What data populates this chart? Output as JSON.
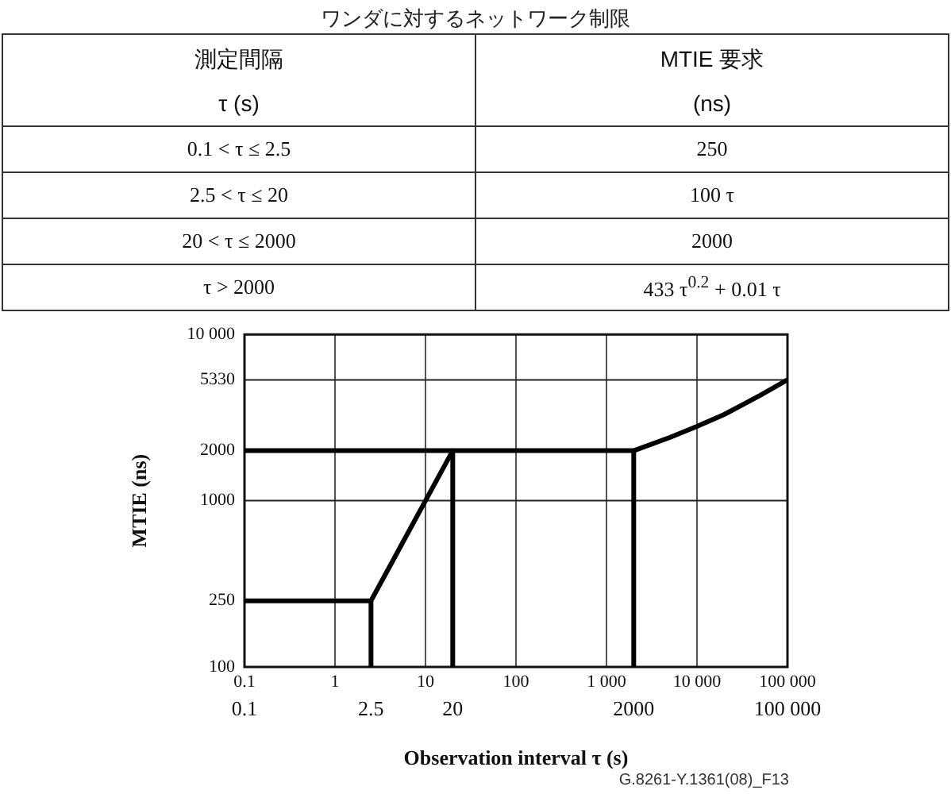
{
  "chart_data": {
    "type": "line",
    "title": "ワンダに対するネットワーク制限",
    "xlabel": "Observation interval τ (s)",
    "ylabel": "MTIE (ns)",
    "annotations": [
      "測定間隔",
      "τ (s)",
      "MTIE 要求",
      "(ns)",
      "0.1 < τ ≤ 2.5",
      "250",
      "2.5 < τ ≤ 20",
      "100 τ",
      "20 < τ ≤ 2000",
      "2000",
      "τ > 2000",
      "433 τ$^{0.2}$ + 0.01 τ",
      "0.1",
      {
        "text": "2.5",
        "x": 2.5,
        "y": 100
      },
      {
        "text": "20",
        "x": 20,
        "y": 100
      },
      {
        "text": "2000",
        "x": 2000,
        "y": 100
      },
      "100 000",
      "G.8261-Y.1361(08)_F13"
    ],
    "log": "xy",
    "xlim": [
      0.1,
      100000
    ],
    "xticks": [
      0.1,
      1,
      10,
      100,
      {
        "value": 1000,
        "label": "1 000"
      },
      {
        "value": 10000,
        "label": "10 000"
      },
      {
        "value": 100000,
        "label": "100 000"
      }
    ],
    "ylim": [
      100,
      10000
    ],
    "yticks": [
      100,
      250,
      1000,
      2000,
      5330,
      {
        "value": 10000,
        "label": "10 000"
      }
    ],
    "grid": "x",
    "marker": "none",
    "ref_lines": [
      {
        "axis": "y",
        "value": 1000,
        "color": "#222222"
      },
      {
        "axis": "y",
        "value": 5330,
        "color": "#222222"
      }
    ],
    "series": [
      {
        "color": "#000000",
        "x": [
          0.1,
          2.5,
          20,
          2000,
          5000,
          10000,
          20000,
          50000,
          100000
        ],
        "values": [
          250,
          250,
          2000,
          2000,
          2400,
          2800,
          3300,
          4300,
          5330
        ]
      },
      {
        "color": "#000000",
        "x": [
          0.1,
          20
        ],
        "values": [
          2000,
          2000
        ]
      },
      {
        "color": "#000000",
        "x": [
          2.5,
          2.5
        ],
        "values": [
          100,
          250
        ]
      },
      {
        "color": "#000000",
        "x": [
          20,
          20
        ],
        "values": [
          100,
          2000
        ]
      },
      {
        "color": "#000000",
        "x": [
          2000,
          2000
        ],
        "values": [
          100,
          2000
        ]
      }
    ]
  }
}
